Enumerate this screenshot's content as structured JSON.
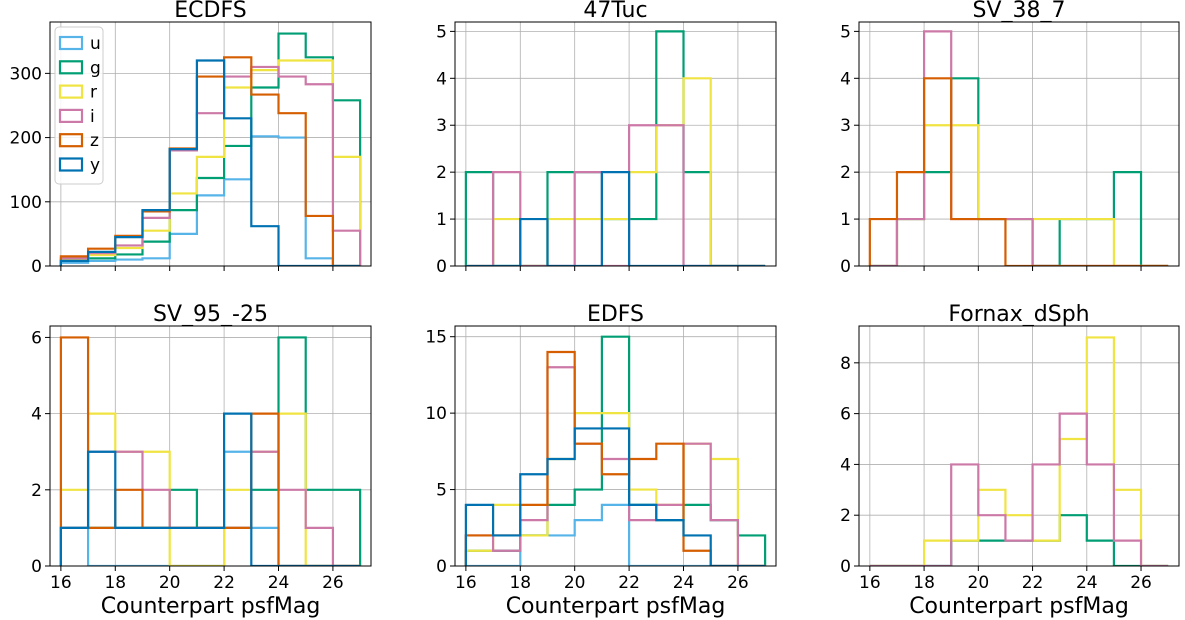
{
  "figure": {
    "xlabel": "Counterpart psfMag"
  },
  "colors": {
    "u": "#56b4e9",
    "g": "#009e73",
    "r": "#f0e442",
    "i": "#cc79a7",
    "z": "#d55e00",
    "y": "#0072b2"
  },
  "legend": [
    "u",
    "g",
    "r",
    "i",
    "z",
    "y"
  ],
  "chart_data": [
    {
      "type": "histogram",
      "title": "ECDFS",
      "bin_edges": [
        16,
        17,
        18,
        19,
        20,
        21,
        22,
        23,
        24,
        25,
        26,
        27
      ],
      "xlim": [
        15.6,
        27.4
      ],
      "ylim": [
        0,
        380
      ],
      "xticks": [
        16,
        18,
        20,
        22,
        24,
        26
      ],
      "yticks": [
        0,
        100,
        200,
        300
      ],
      "show_xticklabels": false,
      "xlabel": "",
      "legend": true,
      "series": [
        {
          "name": "u",
          "values": [
            5,
            8,
            10,
            12,
            50,
            110,
            135,
            202,
            200,
            12,
            0
          ]
        },
        {
          "name": "g",
          "values": [
            8,
            12,
            18,
            38,
            87,
            137,
            187,
            278,
            362,
            325,
            258
          ]
        },
        {
          "name": "r",
          "values": [
            10,
            17,
            28,
            55,
            113,
            170,
            278,
            305,
            320,
            320,
            170
          ]
        },
        {
          "name": "i",
          "values": [
            12,
            20,
            32,
            75,
            180,
            238,
            295,
            310,
            295,
            283,
            55
          ]
        },
        {
          "name": "z",
          "values": [
            15,
            27,
            47,
            85,
            183,
            295,
            325,
            267,
            238,
            78,
            0
          ]
        },
        {
          "name": "y",
          "values": [
            8,
            22,
            45,
            87,
            182,
            320,
            230,
            62,
            0,
            0,
            0
          ]
        }
      ]
    },
    {
      "type": "histogram",
      "title": "47Tuc",
      "bin_edges": [
        16,
        17,
        18,
        19,
        20,
        21,
        22,
        23,
        24,
        25,
        26,
        27
      ],
      "xlim": [
        15.6,
        27.4
      ],
      "ylim": [
        0,
        5.2
      ],
      "xticks": [
        16,
        18,
        20,
        22,
        24,
        26
      ],
      "yticks": [
        0,
        1,
        2,
        3,
        4,
        5
      ],
      "show_xticklabels": false,
      "xlabel": "",
      "series": [
        {
          "name": "g",
          "values": [
            2,
            0,
            0,
            2,
            2,
            1,
            1,
            5,
            2,
            0,
            0
          ]
        },
        {
          "name": "r",
          "values": [
            0,
            1,
            0,
            1,
            1,
            1,
            2,
            3,
            4,
            0,
            0
          ]
        },
        {
          "name": "i",
          "values": [
            0,
            2,
            0,
            0,
            2,
            0,
            3,
            3,
            0,
            0,
            0
          ]
        },
        {
          "name": "y",
          "values": [
            0,
            0,
            1,
            0,
            0,
            2,
            0,
            0,
            0,
            0,
            0
          ]
        }
      ]
    },
    {
      "type": "histogram",
      "title": "SV_38_7",
      "bin_edges": [
        16,
        17,
        18,
        19,
        20,
        21,
        22,
        23,
        24,
        25,
        26,
        27
      ],
      "xlim": [
        15.6,
        27.4
      ],
      "ylim": [
        0,
        5.2
      ],
      "xticks": [
        16,
        18,
        20,
        22,
        24,
        26
      ],
      "yticks": [
        0,
        1,
        2,
        3,
        4,
        5
      ],
      "show_xticklabels": false,
      "xlabel": "",
      "series": [
        {
          "name": "g",
          "values": [
            0,
            1,
            2,
            4,
            1,
            1,
            0,
            1,
            1,
            2,
            0
          ]
        },
        {
          "name": "r",
          "values": [
            0,
            1,
            3,
            3,
            1,
            1,
            1,
            1,
            1,
            0,
            0
          ]
        },
        {
          "name": "i",
          "values": [
            0,
            1,
            5,
            1,
            1,
            1,
            0,
            0,
            0,
            0,
            0
          ]
        },
        {
          "name": "z",
          "values": [
            1,
            2,
            4,
            1,
            1,
            0,
            0,
            0,
            0,
            0,
            0
          ]
        }
      ]
    },
    {
      "type": "histogram",
      "title": "SV_95_-25",
      "bin_edges": [
        16,
        17,
        18,
        19,
        20,
        21,
        22,
        23,
        24,
        25,
        26,
        27
      ],
      "xlim": [
        15.6,
        27.4
      ],
      "ylim": [
        0,
        6.3
      ],
      "xticks": [
        16,
        18,
        20,
        22,
        24,
        26
      ],
      "yticks": [
        0,
        2,
        4,
        6
      ],
      "show_xticklabels": true,
      "xlabel": "Counterpart psfMag",
      "series": [
        {
          "name": "u",
          "values": [
            1,
            0,
            0,
            0,
            0,
            0,
            3,
            1,
            0,
            0,
            0
          ]
        },
        {
          "name": "g",
          "values": [
            1,
            1,
            1,
            1,
            2,
            1,
            1,
            2,
            6,
            2,
            2
          ]
        },
        {
          "name": "r",
          "values": [
            2,
            4,
            3,
            3,
            0,
            0,
            2,
            3,
            4,
            0,
            0
          ]
        },
        {
          "name": "i",
          "values": [
            1,
            3,
            3,
            2,
            1,
            1,
            1,
            3,
            2,
            1,
            0
          ]
        },
        {
          "name": "z",
          "values": [
            6,
            1,
            2,
            1,
            1,
            1,
            1,
            4,
            0,
            0,
            0
          ]
        },
        {
          "name": "y",
          "values": [
            1,
            3,
            1,
            1,
            1,
            1,
            4,
            0,
            0,
            0,
            0
          ]
        }
      ]
    },
    {
      "type": "histogram",
      "title": "EDFS",
      "bin_edges": [
        16,
        17,
        18,
        19,
        20,
        21,
        22,
        23,
        24,
        25,
        26,
        27
      ],
      "xlim": [
        15.6,
        27.4
      ],
      "ylim": [
        0,
        15.7
      ],
      "xticks": [
        16,
        18,
        20,
        22,
        24,
        26
      ],
      "yticks": [
        0,
        5,
        10,
        15
      ],
      "show_xticklabels": true,
      "xlabel": "Counterpart psfMag",
      "series": [
        {
          "name": "u",
          "values": [
            0,
            0,
            2,
            2,
            3,
            4,
            0,
            0,
            0,
            0,
            0
          ]
        },
        {
          "name": "g",
          "values": [
            1,
            1,
            2,
            4,
            5,
            15,
            4,
            3,
            4,
            3,
            2
          ]
        },
        {
          "name": "r",
          "values": [
            1,
            4,
            2,
            7,
            10,
            10,
            5,
            4,
            8,
            7,
            0
          ]
        },
        {
          "name": "i",
          "values": [
            2,
            1,
            3,
            13,
            8,
            7,
            3,
            4,
            8,
            3,
            0
          ]
        },
        {
          "name": "z",
          "values": [
            2,
            2,
            4,
            14,
            8,
            6,
            7,
            8,
            1,
            0,
            0
          ]
        },
        {
          "name": "y",
          "values": [
            4,
            2,
            6,
            7,
            9,
            9,
            4,
            3,
            2,
            0,
            0
          ]
        }
      ]
    },
    {
      "type": "histogram",
      "title": "Fornax_dSph",
      "bin_edges": [
        16,
        17,
        18,
        19,
        20,
        21,
        22,
        23,
        24,
        25,
        26,
        27
      ],
      "xlim": [
        15.6,
        27.4
      ],
      "ylim": [
        0,
        9.45
      ],
      "xticks": [
        16,
        18,
        20,
        22,
        24,
        26
      ],
      "yticks": [
        0,
        2,
        4,
        6,
        8
      ],
      "show_xticklabels": true,
      "xlabel": "Counterpart psfMag",
      "series": [
        {
          "name": "g",
          "values": [
            0,
            0,
            0,
            1,
            1,
            1,
            1,
            2,
            1,
            0,
            0
          ]
        },
        {
          "name": "r",
          "values": [
            0,
            0,
            1,
            1,
            3,
            2,
            1,
            5,
            9,
            3,
            0
          ]
        },
        {
          "name": "i",
          "values": [
            0,
            0,
            0,
            4,
            2,
            1,
            4,
            6,
            4,
            1,
            0
          ]
        }
      ]
    }
  ]
}
